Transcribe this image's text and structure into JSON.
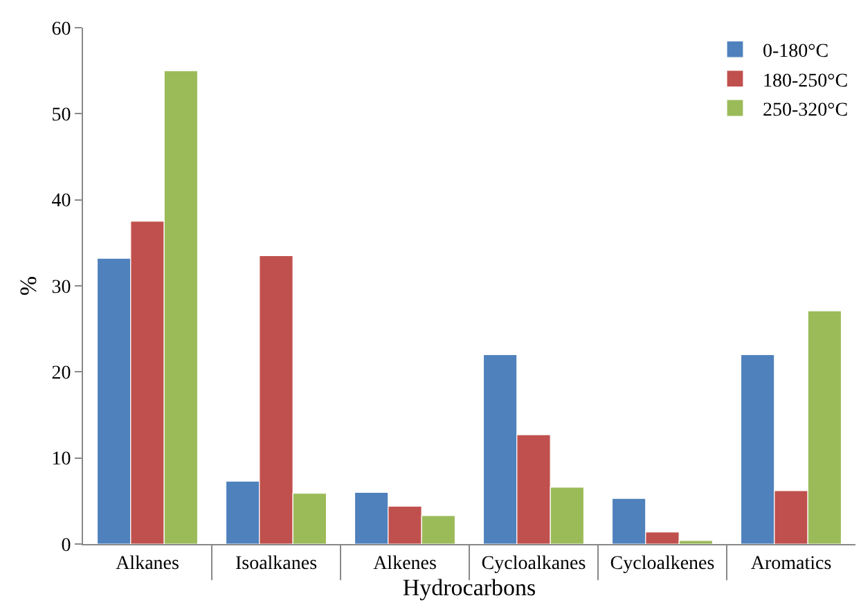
{
  "chart_data": {
    "type": "bar",
    "xlabel": "Hydrocarbons",
    "ylabel": "%",
    "categories": [
      "Alkanes",
      "Isoalkanes",
      "Alkenes",
      "Cycloalkanes",
      "Cycloalkenes",
      "Aromatics"
    ],
    "series": [
      {
        "name": "0-180°C",
        "color": "#4f81bd",
        "values": [
          33.2,
          7.3,
          6.0,
          22.0,
          5.3,
          22.0
        ]
      },
      {
        "name": "180-250°C",
        "color": "#c0504d",
        "values": [
          37.5,
          33.5,
          4.4,
          12.7,
          1.4,
          6.2
        ]
      },
      {
        "name": "250-320°C",
        "color": "#9bbb59",
        "values": [
          55.0,
          5.9,
          3.3,
          6.6,
          0.4,
          27.1
        ]
      }
    ],
    "ylim": [
      0,
      60
    ],
    "yticks": [
      0,
      10,
      20,
      30,
      40,
      50,
      60
    ],
    "legend": "top right"
  }
}
